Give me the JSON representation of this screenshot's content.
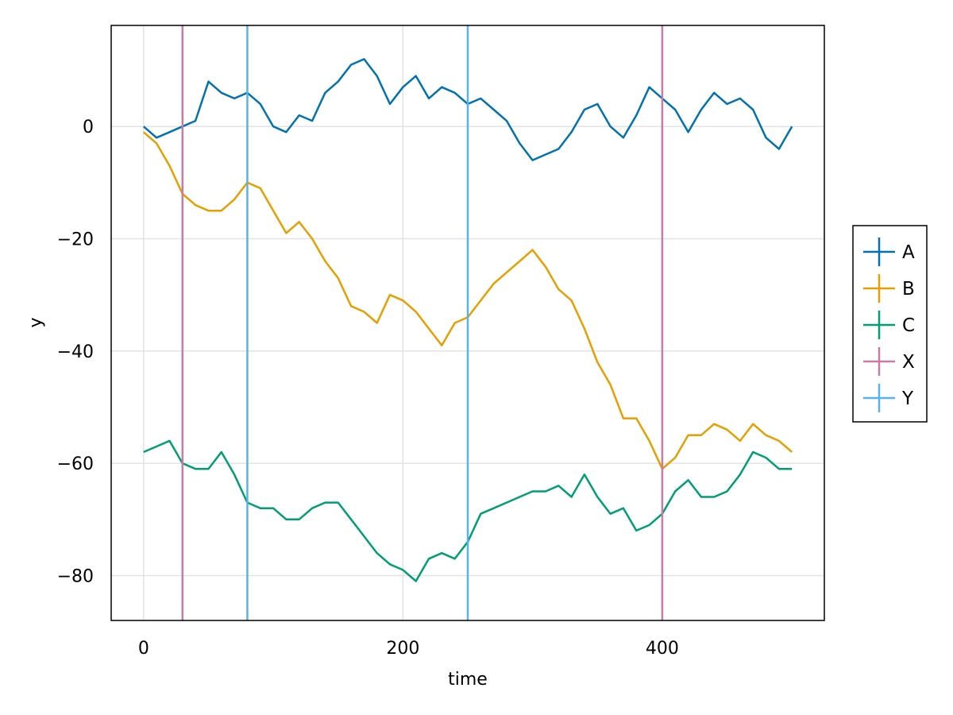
{
  "chart_data": {
    "type": "line",
    "title": "",
    "xlabel": "time",
    "ylabel": "y",
    "xlim": [
      -25,
      525
    ],
    "ylim": [
      -88,
      18
    ],
    "xticks": [
      0,
      200,
      400
    ],
    "yticks": [
      0,
      -20,
      -40,
      -60,
      -80
    ],
    "grid": true,
    "legend_position": "right",
    "series": [
      {
        "name": "A",
        "color": "#0072b2",
        "x": [
          0,
          10,
          20,
          30,
          40,
          50,
          60,
          70,
          80,
          90,
          100,
          110,
          120,
          130,
          140,
          150,
          160,
          170,
          180,
          190,
          200,
          210,
          220,
          230,
          240,
          250,
          260,
          270,
          280,
          290,
          300,
          310,
          320,
          330,
          340,
          350,
          360,
          370,
          380,
          390,
          400,
          410,
          420,
          430,
          440,
          450,
          460,
          470,
          480,
          490,
          500
        ],
        "values": [
          0,
          -2,
          -1,
          0,
          1,
          8,
          6,
          5,
          6,
          4,
          0,
          -1,
          2,
          1,
          6,
          8,
          11,
          12,
          9,
          4,
          7,
          9,
          5,
          7,
          6,
          4,
          5,
          3,
          1,
          -3,
          -6,
          -5,
          -4,
          -1,
          3,
          4,
          0,
          -2,
          2,
          7,
          5,
          3,
          -1,
          3,
          6,
          4,
          5,
          3,
          -2,
          -4,
          0
        ]
      },
      {
        "name": "B",
        "color": "#e69f00",
        "x": [
          0,
          10,
          20,
          30,
          40,
          50,
          60,
          70,
          80,
          90,
          100,
          110,
          120,
          130,
          140,
          150,
          160,
          170,
          180,
          190,
          200,
          210,
          220,
          230,
          240,
          250,
          260,
          270,
          280,
          290,
          300,
          310,
          320,
          330,
          340,
          350,
          360,
          370,
          380,
          390,
          400,
          410,
          420,
          430,
          440,
          450,
          460,
          470,
          480,
          490,
          500
        ],
        "values": [
          -1,
          -3,
          -7,
          -12,
          -14,
          -15,
          -15,
          -13,
          -10,
          -11,
          -15,
          -19,
          -17,
          -20,
          -24,
          -27,
          -32,
          -33,
          -35,
          -30,
          -31,
          -33,
          -36,
          -39,
          -35,
          -34,
          -31,
          -28,
          -26,
          -24,
          -22,
          -25,
          -29,
          -31,
          -36,
          -42,
          -46,
          -52,
          -52,
          -56,
          -61,
          -59,
          -55,
          -55,
          -53,
          -54,
          -56,
          -53,
          -55,
          -56,
          -58
        ]
      },
      {
        "name": "C",
        "color": "#009e73",
        "x": [
          0,
          10,
          20,
          30,
          40,
          50,
          60,
          70,
          80,
          90,
          100,
          110,
          120,
          130,
          140,
          150,
          160,
          170,
          180,
          190,
          200,
          210,
          220,
          230,
          240,
          250,
          260,
          270,
          280,
          290,
          300,
          310,
          320,
          330,
          340,
          350,
          360,
          370,
          380,
          390,
          400,
          410,
          420,
          430,
          440,
          450,
          460,
          470,
          480,
          490,
          500
        ],
        "values": [
          -58,
          -57,
          -56,
          -60,
          -61,
          -61,
          -58,
          -62,
          -67,
          -68,
          -68,
          -70,
          -70,
          -68,
          -67,
          -67,
          -70,
          -73,
          -76,
          -78,
          -79,
          -81,
          -77,
          -76,
          -77,
          -74,
          -69,
          -68,
          -67,
          -66,
          -65,
          -65,
          -64,
          -66,
          -62,
          -66,
          -69,
          -68,
          -72,
          -71,
          -69,
          -65,
          -63,
          -66,
          -66,
          -65,
          -62,
          -58,
          -59,
          -61,
          -61
        ]
      },
      {
        "name": "X",
        "color": "#cc79a7",
        "vlines": [
          30,
          400
        ]
      },
      {
        "name": "Y",
        "color": "#56b4e9",
        "vlines": [
          80,
          250
        ]
      }
    ]
  }
}
